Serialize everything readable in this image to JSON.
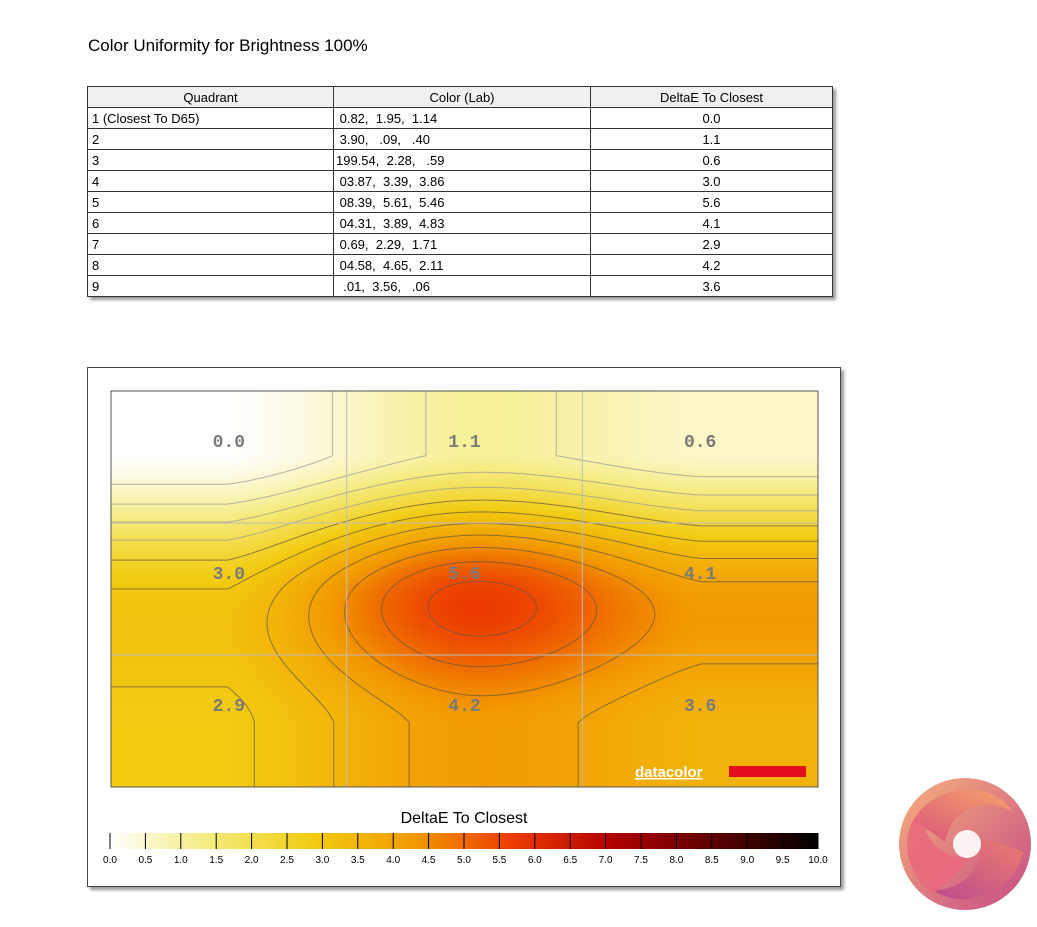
{
  "title": "Color Uniformity for Brightness 100%",
  "table": {
    "headers": [
      "Quadrant",
      "Color (Lab)",
      "DeltaE To Closest"
    ],
    "rows": [
      {
        "quadrant": "1 (Closest To D65)",
        "lab": " 0.82,  1.95,  1.14",
        "delta": "0.0"
      },
      {
        "quadrant": "2",
        "lab": " 3.90,   .09,   .40",
        "delta": "1.1"
      },
      {
        "quadrant": "3",
        "lab": "199.54,  2.28,   .59",
        "delta": "0.6"
      },
      {
        "quadrant": "4",
        "lab": " 03.87,  3.39,  3.86",
        "delta": "3.0"
      },
      {
        "quadrant": "5",
        "lab": " 08.39,  5.61,  5.46",
        "delta": "5.6"
      },
      {
        "quadrant": "6",
        "lab": " 04.31,  3.89,  4.83",
        "delta": "4.1"
      },
      {
        "quadrant": "7",
        "lab": " 0.69,  2.29,  1.71",
        "delta": "2.9"
      },
      {
        "quadrant": "8",
        "lab": " 04.58,  4.65,  2.11",
        "delta": "4.2"
      },
      {
        "quadrant": "9",
        "lab": "  .01,  3.56,   .06",
        "delta": "3.6"
      }
    ]
  },
  "chart_data": {
    "type": "heatmap",
    "grid": {
      "rows": 3,
      "cols": 3
    },
    "values": [
      [
        0.0,
        1.1,
        0.6
      ],
      [
        3.0,
        5.6,
        4.1
      ],
      [
        2.9,
        4.2,
        3.6
      ]
    ],
    "cell_labels": [
      [
        "0.0",
        "1.1",
        "0.6"
      ],
      [
        "3.0",
        "5.6",
        "4.1"
      ],
      [
        "2.9",
        "4.2",
        "3.6"
      ]
    ],
    "colorbar": {
      "title": "DeltaE To Closest",
      "range": [
        0,
        10
      ],
      "ticks": [
        "0.0",
        "0.5",
        "1.0",
        "1.5",
        "2.0",
        "2.5",
        "3.0",
        "3.5",
        "4.0",
        "4.5",
        "5.0",
        "5.5",
        "6.0",
        "6.5",
        "7.0",
        "7.5",
        "8.0",
        "8.5",
        "9.0",
        "9.5",
        "10.0"
      ]
    },
    "colors": [
      "#ffffff",
      "#f5eb7c",
      "#f2cc12",
      "#f29a00",
      "#ec3a00",
      "#b00000",
      "#5a0000",
      "#000000"
    ],
    "watermark": "datacolor"
  }
}
